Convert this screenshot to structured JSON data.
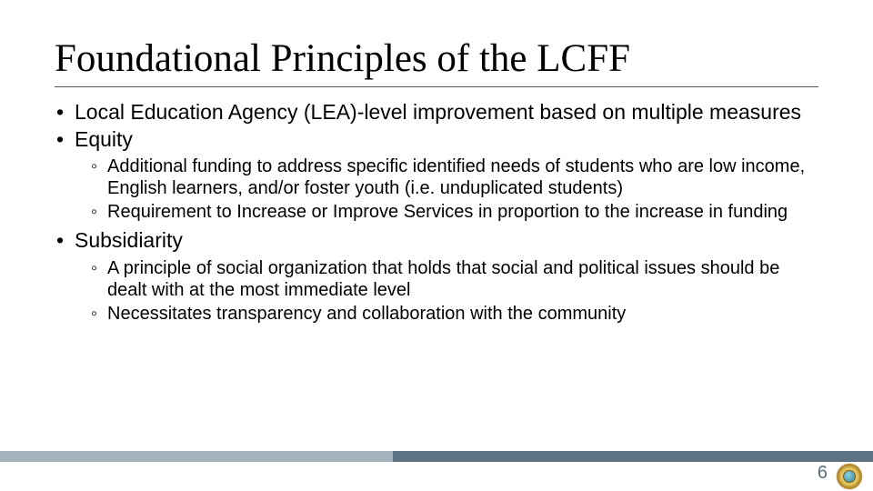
{
  "title": "Foundational Principles of the LCFF",
  "bullets": {
    "b1": "Local Education Agency (LEA)-level improvement based on multiple measures",
    "b2": "Equity",
    "b2_subs": {
      "s1": "Additional funding to address specific identified needs of students who are low income, English learners, and/or foster youth (i.e. unduplicated students)",
      "s2": "Requirement to Increase or Improve Services in proportion to the increase in funding"
    },
    "b3": "Subsidiarity",
    "b3_subs": {
      "s1": "A principle of social organization that holds that social and political issues should be dealt with at the most immediate level",
      "s2": "Necessitates transparency and collaboration with the community"
    }
  },
  "footer": {
    "page_number": "6",
    "bar_colors": {
      "left": "#a5b3be",
      "right": "#5d7385"
    },
    "bar_split_pct": 45
  },
  "typography": {
    "title_font": "Times New Roman",
    "body_font": "Arial",
    "title_size_pt": 32,
    "level1_size_pt": 17,
    "level2_size_pt": 15
  },
  "colors": {
    "text": "#000000",
    "background": "#ffffff",
    "page_number": "#5a6b77",
    "title_underline": "#555555"
  },
  "seal": {
    "outer_ring": "#b58a2e",
    "inner_globe": "#4a9bb5"
  }
}
